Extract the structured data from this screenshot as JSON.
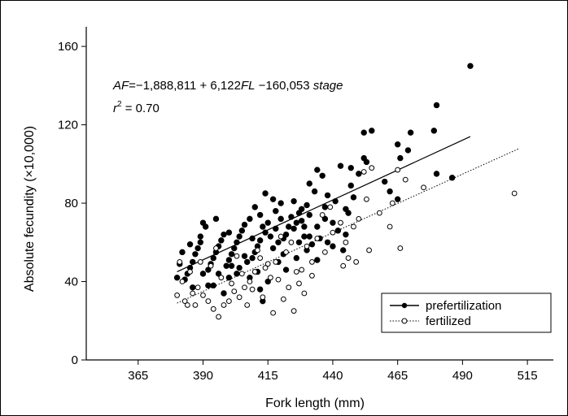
{
  "chart_data": {
    "type": "scatter",
    "title": "",
    "xlabel": "Fork length (mm)",
    "ylabel": "Absolute fecundity (×10,000)",
    "xlim": [
      345,
      525
    ],
    "ylim": [
      0,
      170
    ],
    "xticks": [
      365,
      390,
      415,
      440,
      465,
      490,
      515
    ],
    "yticks": [
      0,
      40,
      80,
      120,
      160
    ],
    "xtick_labels": [
      "365",
      "390",
      "415",
      "440",
      "465",
      "490",
      "515"
    ],
    "ytick_labels": [
      "0",
      "40",
      "80",
      "120",
      "160"
    ],
    "grid": false,
    "legend_position": "bottom-right",
    "annotation": {
      "equation_label": "AF",
      "equation_rhs": "=−1,888,811  + 6,122",
      "equation_term_var": "FL",
      "equation_tail": " −160,053",
      "equation_stage_var": "stage",
      "r2_base": "r",
      "r2_sup": "2",
      "r2_value": " = 0.70"
    },
    "series": [
      {
        "name": "prefertilization",
        "marker": "filled-circle",
        "line_style": "solid",
        "color": "#000000",
        "fit": {
          "x": [
            380,
            493
          ],
          "y": [
            45,
            114
          ]
        },
        "points": [
          [
            493,
            150
          ],
          [
            480,
            130
          ],
          [
            479,
            117
          ],
          [
            480,
            95
          ],
          [
            486,
            93
          ],
          [
            455,
            117
          ],
          [
            452,
            116
          ],
          [
            470,
            116
          ],
          [
            465,
            110
          ],
          [
            466,
            103
          ],
          [
            469,
            107
          ],
          [
            460,
            91
          ],
          [
            465,
            82
          ],
          [
            462,
            86
          ],
          [
            452,
            103
          ],
          [
            453,
            101
          ],
          [
            447,
            98
          ],
          [
            450,
            95
          ],
          [
            447,
            89
          ],
          [
            448,
            83
          ],
          [
            443,
            99
          ],
          [
            436,
            94
          ],
          [
            434,
            97
          ],
          [
            438,
            84
          ],
          [
            437,
            78
          ],
          [
            433,
            86
          ],
          [
            431,
            90
          ],
          [
            430,
            79
          ],
          [
            441,
            81
          ],
          [
            445,
            77
          ],
          [
            446,
            75
          ],
          [
            440,
            70
          ],
          [
            442,
            66
          ],
          [
            445,
            64
          ],
          [
            437,
            72
          ],
          [
            434,
            68
          ],
          [
            431,
            74
          ],
          [
            428,
            71
          ],
          [
            427,
            75
          ],
          [
            426,
            70
          ],
          [
            425,
            67
          ],
          [
            429,
            63
          ],
          [
            432,
            59
          ],
          [
            435,
            62
          ],
          [
            438,
            60
          ],
          [
            440,
            58
          ],
          [
            444,
            56
          ],
          [
            424,
            73
          ],
          [
            423,
            68
          ],
          [
            422,
            64
          ],
          [
            420,
            72
          ],
          [
            418,
            67
          ],
          [
            421,
            62
          ],
          [
            419,
            60
          ],
          [
            417,
            57
          ],
          [
            416,
            63
          ],
          [
            414,
            65
          ],
          [
            413,
            68
          ],
          [
            412,
            61
          ],
          [
            411,
            58
          ],
          [
            410,
            55
          ],
          [
            409,
            52
          ],
          [
            415,
            70
          ],
          [
            414,
            85
          ],
          [
            417,
            82
          ],
          [
            410,
            78
          ],
          [
            408,
            72
          ],
          [
            406,
            69
          ],
          [
            405,
            66
          ],
          [
            404,
            63
          ],
          [
            403,
            60
          ],
          [
            402,
            57
          ],
          [
            401,
            54
          ],
          [
            400,
            51
          ],
          [
            399,
            48
          ],
          [
            398,
            64
          ],
          [
            397,
            61
          ],
          [
            396,
            58
          ],
          [
            395,
            55
          ],
          [
            394,
            52
          ],
          [
            393,
            49
          ],
          [
            392,
            46
          ],
          [
            391,
            68
          ],
          [
            390,
            70
          ],
          [
            389,
            60
          ],
          [
            388,
            57
          ],
          [
            387,
            54
          ],
          [
            386,
            50
          ],
          [
            385,
            47
          ],
          [
            384,
            44
          ],
          [
            383,
            41
          ],
          [
            382,
            55
          ],
          [
            381,
            49
          ],
          [
            380,
            42
          ],
          [
            392,
            38
          ],
          [
            396,
            44
          ],
          [
            400,
            42
          ],
          [
            404,
            47
          ],
          [
            407,
            50
          ],
          [
            411,
            45
          ],
          [
            412,
            36
          ],
          [
            415,
            40
          ],
          [
            413,
            30
          ],
          [
            408,
            42
          ],
          [
            403,
            44
          ],
          [
            398,
            34
          ],
          [
            394,
            38
          ],
          [
            390,
            44
          ],
          [
            386,
            37
          ],
          [
            419,
            50
          ],
          [
            421,
            54
          ],
          [
            426,
            52
          ],
          [
            430,
            56
          ],
          [
            434,
            51
          ],
          [
            422,
            46
          ],
          [
            425,
            81
          ],
          [
            428,
            77
          ],
          [
            400,
            65
          ],
          [
            395,
            72
          ],
          [
            389,
            63
          ],
          [
            385,
            59
          ],
          [
            401,
            48
          ],
          [
            406,
            53
          ],
          [
            409,
            62
          ],
          [
            412,
            74
          ],
          [
            418,
            76
          ],
          [
            420,
            80
          ],
          [
            427,
            60
          ],
          [
            429,
            68
          ],
          [
            431,
            63
          ]
        ]
      },
      {
        "name": "fertilized",
        "marker": "open-circle",
        "line_style": "dotted",
        "color": "#000000",
        "fit": {
          "x": [
            380,
            512
          ],
          "y": [
            29,
            108
          ]
        },
        "points": [
          [
            510,
            85
          ],
          [
            475,
            88
          ],
          [
            468,
            92
          ],
          [
            465,
            97
          ],
          [
            463,
            80
          ],
          [
            458,
            75
          ],
          [
            455,
            98
          ],
          [
            452,
            96
          ],
          [
            450,
            72
          ],
          [
            448,
            68
          ],
          [
            445,
            60
          ],
          [
            443,
            70
          ],
          [
            440,
            65
          ],
          [
            439,
            78
          ],
          [
            436,
            74
          ],
          [
            434,
            62
          ],
          [
            432,
            50
          ],
          [
            430,
            58
          ],
          [
            428,
            46
          ],
          [
            426,
            45
          ],
          [
            424,
            60
          ],
          [
            422,
            55
          ],
          [
            420,
            63
          ],
          [
            418,
            50
          ],
          [
            416,
            42
          ],
          [
            414,
            47
          ],
          [
            412,
            52
          ],
          [
            410,
            45
          ],
          [
            408,
            40
          ],
          [
            406,
            37
          ],
          [
            404,
            32
          ],
          [
            402,
            35
          ],
          [
            400,
            30
          ],
          [
            398,
            28
          ],
          [
            396,
            22
          ],
          [
            394,
            26
          ],
          [
            392,
            30
          ],
          [
            390,
            33
          ],
          [
            388,
            37
          ],
          [
            386,
            34
          ],
          [
            384,
            28
          ],
          [
            382,
            40
          ],
          [
            380,
            33
          ],
          [
            381,
            50
          ],
          [
            385,
            45
          ],
          [
            389,
            50
          ],
          [
            393,
            48
          ],
          [
            397,
            42
          ],
          [
            401,
            39
          ],
          [
            405,
            44
          ],
          [
            409,
            36
          ],
          [
            413,
            32
          ],
          [
            417,
            24
          ],
          [
            421,
            31
          ],
          [
            425,
            25
          ],
          [
            429,
            34
          ],
          [
            432,
            43
          ],
          [
            437,
            55
          ],
          [
            444,
            48
          ],
          [
            449,
            50
          ],
          [
            454,
            56
          ],
          [
            462,
            68
          ],
          [
            466,
            57
          ],
          [
            453,
            82
          ],
          [
            446,
            52
          ],
          [
            423,
            37
          ],
          [
            415,
            49
          ],
          [
            411,
            56
          ],
          [
            403,
            53
          ],
          [
            395,
            57
          ],
          [
            387,
            28
          ],
          [
            383,
            30
          ],
          [
            407,
            28
          ],
          [
            419,
            41
          ],
          [
            427,
            39
          ]
        ]
      }
    ]
  }
}
